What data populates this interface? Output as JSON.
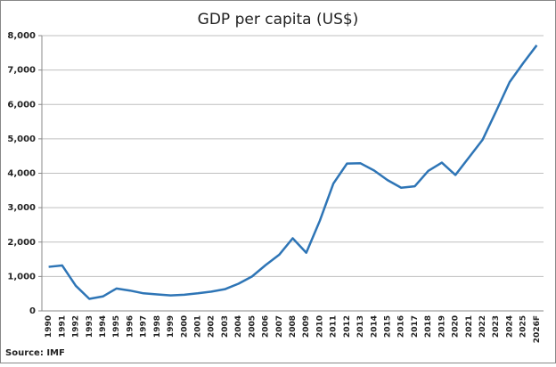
{
  "chart_data": {
    "type": "line",
    "title": "GDP per capita (US$)",
    "categories": [
      "1990",
      "1991",
      "1992",
      "1993",
      "1994",
      "1995",
      "1996",
      "1997",
      "1998",
      "1999",
      "2000",
      "2001",
      "2002",
      "2003",
      "2004",
      "2005",
      "2006",
      "2007",
      "2008",
      "2009",
      "2010",
      "2011",
      "2012",
      "2013",
      "2014",
      "2015",
      "2016",
      "2017",
      "2018",
      "2019",
      "2020",
      "2021",
      "2022",
      "2023",
      "2024",
      "2025",
      "2026F"
    ],
    "series": [
      {
        "name": "GDP per capita",
        "color": "#2e75b6",
        "values": [
          1280,
          1320,
          730,
          350,
          420,
          650,
          590,
          510,
          480,
          450,
          470,
          510,
          560,
          630,
          790,
          1000,
          1330,
          1630,
          2110,
          1690,
          2620,
          3700,
          4280,
          4290,
          4080,
          3800,
          3580,
          3620,
          4070,
          4310,
          3950,
          4460,
          4970,
          5800,
          6650,
          7200,
          7720
        ]
      }
    ],
    "ylim": [
      0,
      8000
    ],
    "yticks": [
      0,
      {
        "value": 1000,
        "label": "1,000"
      },
      {
        "value": 2000,
        "label": "2,000"
      },
      {
        "value": 3000,
        "label": "3,000"
      },
      {
        "value": 4000,
        "label": "4,000"
      },
      {
        "value": 5000,
        "label": "5,000"
      },
      {
        "value": 6000,
        "label": "6,000"
      },
      {
        "value": 7000,
        "label": "7,000"
      },
      {
        "value": 8000,
        "label": "8,000"
      }
    ],
    "grid": true,
    "source": "Source: IMF"
  }
}
